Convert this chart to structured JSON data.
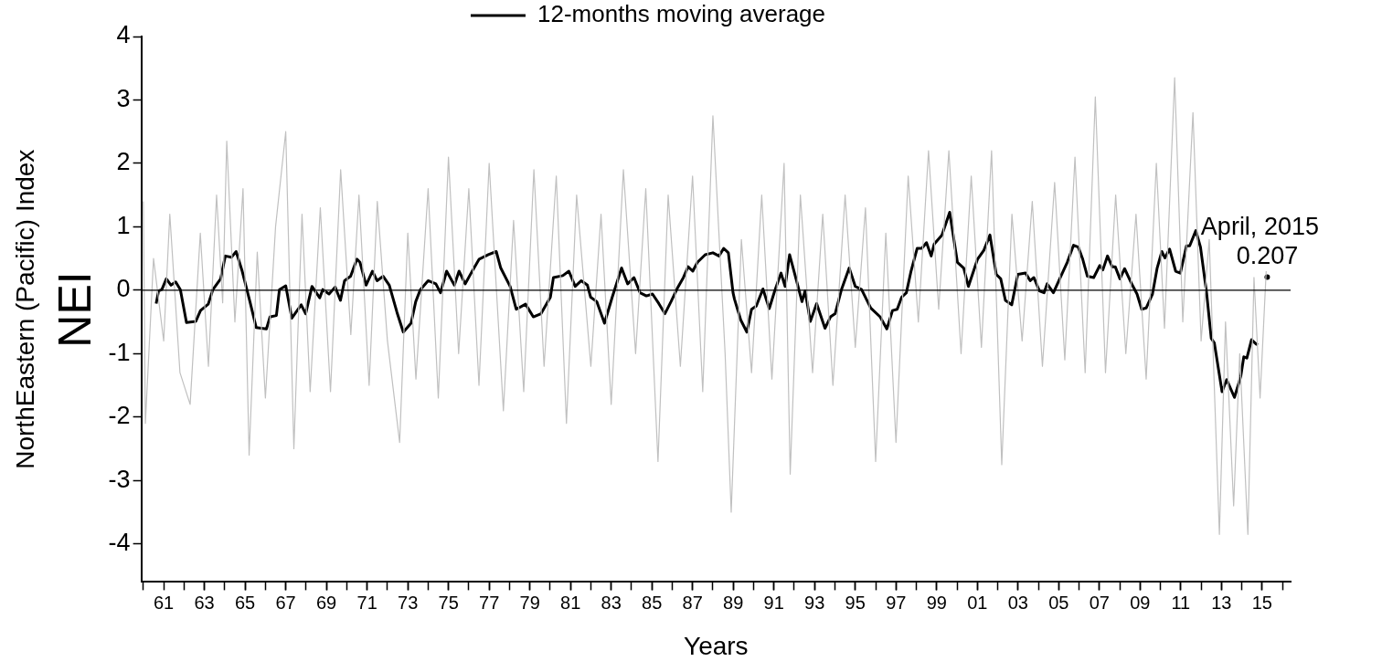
{
  "chart_data": {
    "type": "line",
    "xlabel": "Years",
    "ylabel": "NorthEastern (Pacific) Index",
    "xlim": [
      1959.9,
      2016.4
    ],
    "ylim": [
      -4.6,
      4
    ],
    "yticks": [
      -4,
      -3,
      -2,
      -1,
      0,
      1,
      2,
      3,
      4
    ],
    "xticks": [
      {
        "value": 1960,
        "label": null
      },
      {
        "value": 1962,
        "label": null
      },
      {
        "value": 1963,
        "label": null
      },
      {
        "value": 1964,
        "label": null
      },
      {
        "value": 1965,
        "label": null
      },
      {
        "value": 1966,
        "label": null
      },
      {
        "value": 1967,
        "label": null
      },
      {
        "value": 1968,
        "label": null
      },
      {
        "value": 1969,
        "label": null
      },
      {
        "value": 1970,
        "label": null
      },
      {
        "value": 1971,
        "label": null
      },
      {
        "value": 1972,
        "label": null
      },
      {
        "value": 1973,
        "label": null
      },
      {
        "value": 1974,
        "label": null
      },
      {
        "value": 1975,
        "label": null
      },
      {
        "value": 1976,
        "label": null
      },
      {
        "value": 1977,
        "label": null
      },
      {
        "value": 1978,
        "label": null
      },
      {
        "value": 1979,
        "label": null
      },
      {
        "value": 1980,
        "label": null
      },
      {
        "value": 1981,
        "label": null
      },
      {
        "value": 1982,
        "label": null
      },
      {
        "value": 1983,
        "label": null
      },
      {
        "value": 1984,
        "label": null
      },
      {
        "value": 1985,
        "label": null
      },
      {
        "value": 1986,
        "label": null
      },
      {
        "value": 1987,
        "label": null
      },
      {
        "value": 1988,
        "label": null
      },
      {
        "value": 1989,
        "label": null
      },
      {
        "value": 1990,
        "label": null
      },
      {
        "value": 1991,
        "label": null
      },
      {
        "value": 1992,
        "label": null
      },
      {
        "value": 1993,
        "label": null
      },
      {
        "value": 1994,
        "label": null
      },
      {
        "value": 1995,
        "label": null
      },
      {
        "value": 1996,
        "label": null
      },
      {
        "value": 1997,
        "label": null
      },
      {
        "value": 1998,
        "label": null
      },
      {
        "value": 1999,
        "label": null
      },
      {
        "value": 2000,
        "label": null
      },
      {
        "value": 2001,
        "label": null
      },
      {
        "value": 2002,
        "label": null
      },
      {
        "value": 2003,
        "label": null
      },
      {
        "value": 2004,
        "label": null
      },
      {
        "value": 2005,
        "label": null
      },
      {
        "value": 2006,
        "label": null
      },
      {
        "value": 2007,
        "label": null
      },
      {
        "value": 2008,
        "label": null
      },
      {
        "value": 2009,
        "label": null
      },
      {
        "value": 2010,
        "label": null
      },
      {
        "value": 2011,
        "label": null
      },
      {
        "value": 2012,
        "label": null
      },
      {
        "value": 2013,
        "label": null
      },
      {
        "value": 2014,
        "label": null
      },
      {
        "value": 2015,
        "label": null
      },
      {
        "value": 2016,
        "label": null
      },
      {
        "value": 1961,
        "label": "61"
      },
      {
        "value": 1963,
        "label": "63"
      },
      {
        "value": 1965,
        "label": "65"
      },
      {
        "value": 1967,
        "label": "67"
      },
      {
        "value": 1969,
        "label": "69"
      },
      {
        "value": 1971,
        "label": "71"
      },
      {
        "value": 1973,
        "label": "73"
      },
      {
        "value": 1975,
        "label": "75"
      },
      {
        "value": 1977,
        "label": "77"
      },
      {
        "value": 1979,
        "label": "79"
      },
      {
        "value": 1981,
        "label": "81"
      },
      {
        "value": 1983,
        "label": "83"
      },
      {
        "value": 1985,
        "label": "85"
      },
      {
        "value": 1987,
        "label": "87"
      },
      {
        "value": 1989,
        "label": "89"
      },
      {
        "value": 1991,
        "label": "91"
      },
      {
        "value": 1993,
        "label": "93"
      },
      {
        "value": 1995,
        "label": "95"
      },
      {
        "value": 1997,
        "label": "97"
      },
      {
        "value": 1999,
        "label": "99"
      },
      {
        "value": 2001,
        "label": "01"
      },
      {
        "value": 2003,
        "label": "03"
      },
      {
        "value": 2005,
        "label": "05"
      },
      {
        "value": 2007,
        "label": "07"
      },
      {
        "value": 2009,
        "label": "09"
      },
      {
        "value": 2011,
        "label": "11"
      },
      {
        "value": 2013,
        "label": "13"
      },
      {
        "value": 2015,
        "label": "15"
      }
    ],
    "grid": false,
    "legend": "top",
    "line_style": "solid",
    "ref_lines": [
      {
        "axis": "y",
        "value": 0,
        "color": "#000000"
      }
    ],
    "annotations": [
      "NEI",
      {
        "text": "April, 2015\n0.207",
        "x": 2015.25,
        "y": 0.207
      }
    ],
    "series": [
      {
        "type": "line",
        "color": "#c0c0c0",
        "x": [
          1960.0,
          1960.1,
          1960.5,
          1961.0,
          1961.3,
          1961.8,
          1962.3,
          1962.8,
          1963.2,
          1963.6,
          1963.9,
          1964.1,
          1964.5,
          1964.9,
          1965.2,
          1965.6,
          1966.0,
          1966.5,
          1967.0,
          1967.4,
          1967.8,
          1968.2,
          1968.7,
          1969.2,
          1969.7,
          1970.2,
          1970.6,
          1971.1,
          1971.5,
          1972.0,
          1972.6,
          1973.0,
          1973.4,
          1974.0,
          1974.5,
          1975.0,
          1975.5,
          1976.0,
          1976.5,
          1977.0,
          1977.7,
          1978.2,
          1978.7,
          1979.2,
          1979.7,
          1980.3,
          1980.8,
          1981.3,
          1982.0,
          1982.5,
          1983.0,
          1983.6,
          1984.2,
          1984.7,
          1985.3,
          1985.8,
          1986.4,
          1987.0,
          1987.5,
          1988.0,
          1988.6,
          1988.9,
          1989.4,
          1989.9,
          1990.4,
          1990.9,
          1991.5,
          1991.8,
          1992.3,
          1992.9,
          1993.4,
          1993.9,
          1994.5,
          1995.0,
          1995.5,
          1996.0,
          1996.5,
          1997.0,
          1997.6,
          1998.1,
          1998.6,
          1999.1,
          1999.6,
          2000.2,
          2000.7,
          2001.2,
          2001.7,
          2002.2,
          2002.7,
          2003.2,
          2003.7,
          2004.2,
          2004.8,
          2005.3,
          2005.8,
          2006.3,
          2006.8,
          2007.3,
          2007.8,
          2008.3,
          2008.8,
          2009.3,
          2009.8,
          2010.2,
          2010.7,
          2011.1,
          2011.6,
          2012.0,
          2012.4,
          2012.9,
          2013.2,
          2013.6,
          2013.9,
          2014.3,
          2014.6,
          2014.9,
          2015.2
        ],
        "values": [
          1.4,
          -2.1,
          0.5,
          -0.8,
          1.2,
          -1.3,
          -1.8,
          0.9,
          -1.2,
          1.5,
          -0.2,
          2.35,
          -0.5,
          1.6,
          -2.6,
          0.6,
          -1.7,
          1.0,
          2.5,
          -2.5,
          1.2,
          -1.6,
          1.3,
          -1.6,
          1.9,
          -0.7,
          1.5,
          -1.5,
          1.4,
          -0.8,
          -2.4,
          0.9,
          -1.4,
          1.6,
          -1.7,
          2.1,
          -1.0,
          1.6,
          -1.5,
          2.0,
          -1.9,
          1.1,
          -1.6,
          1.9,
          -1.2,
          1.8,
          -2.1,
          1.5,
          -1.2,
          1.2,
          -1.8,
          1.9,
          -1.0,
          1.6,
          -2.7,
          1.5,
          -1.2,
          1.8,
          -1.6,
          2.75,
          -1.0,
          -3.5,
          0.8,
          -1.3,
          1.5,
          -1.4,
          2.0,
          -2.9,
          1.5,
          -1.3,
          1.2,
          -1.5,
          1.5,
          -0.9,
          1.3,
          -2.7,
          0.9,
          -2.4,
          1.8,
          -0.5,
          2.2,
          -0.3,
          2.2,
          -1.0,
          1.8,
          -0.9,
          2.2,
          -2.75,
          1.2,
          -0.8,
          1.4,
          -1.2,
          1.7,
          -1.1,
          2.1,
          -1.3,
          3.05,
          -1.3,
          1.5,
          -1.0,
          1.2,
          -1.4,
          2.0,
          -0.6,
          3.35,
          -0.5,
          2.8,
          -0.8,
          0.8,
          -3.85,
          -0.5,
          -3.4,
          -1.0,
          -3.85,
          0.2,
          -1.7,
          0.3
        ]
      },
      {
        "type": "line",
        "name": "12-months moving average",
        "color": "#000000",
        "x": [
          1960.63,
          1960.75,
          1960.91,
          1961.13,
          1961.36,
          1961.59,
          1961.82,
          1962.12,
          1962.58,
          1962.81,
          1963.19,
          1963.42,
          1963.8,
          1964.03,
          1964.33,
          1964.56,
          1964.86,
          1965.24,
          1965.55,
          1966.05,
          1966.23,
          1966.54,
          1966.69,
          1967.0,
          1967.3,
          1967.76,
          1967.98,
          1968.29,
          1968.67,
          1968.82,
          1969.13,
          1969.43,
          1969.69,
          1969.89,
          1970.19,
          1970.5,
          1970.65,
          1970.95,
          1971.26,
          1971.49,
          1971.79,
          1972.09,
          1972.47,
          1972.78,
          1973.16,
          1973.39,
          1973.62,
          1974.0,
          1974.38,
          1974.61,
          1974.91,
          1975.29,
          1975.52,
          1975.82,
          1976.2,
          1976.51,
          1976.96,
          1977.35,
          1977.57,
          1978.03,
          1978.33,
          1978.79,
          1979.17,
          1979.55,
          1980.01,
          1980.16,
          1980.62,
          1980.92,
          1981.23,
          1981.53,
          1981.83,
          1981.99,
          1982.29,
          1982.67,
          1983.05,
          1983.51,
          1983.81,
          1984.12,
          1984.42,
          1984.73,
          1985.03,
          1985.34,
          1985.64,
          1985.94,
          1986.25,
          1986.55,
          1986.78,
          1987.01,
          1987.24,
          1987.62,
          1988.0,
          1988.3,
          1988.53,
          1988.76,
          1988.99,
          1989.06,
          1989.37,
          1989.67,
          1989.9,
          1990.13,
          1990.46,
          1990.77,
          1991.04,
          1991.35,
          1991.55,
          1991.77,
          1992.11,
          1992.38,
          1992.53,
          1992.79,
          1993.1,
          1993.51,
          1993.78,
          1994.01,
          1994.32,
          1994.7,
          1995.0,
          1995.31,
          1995.76,
          1996.22,
          1996.55,
          1996.83,
          1997.06,
          1997.28,
          1997.51,
          1997.74,
          1998.04,
          1998.27,
          1998.5,
          1998.73,
          1998.88,
          1999.26,
          1999.64,
          2000.02,
          2000.33,
          2000.56,
          2001.01,
          2001.32,
          2001.62,
          2001.93,
          2002.15,
          2002.38,
          2002.69,
          2002.99,
          2003.37,
          2003.6,
          2003.78,
          2004.05,
          2004.28,
          2004.43,
          2004.74,
          2005.12,
          2005.42,
          2005.73,
          2005.96,
          2006.18,
          2006.41,
          2006.72,
          2007.02,
          2007.17,
          2007.4,
          2007.63,
          2007.78,
          2008.01,
          2008.24,
          2008.62,
          2008.85,
          2009.08,
          2009.3,
          2009.61,
          2009.84,
          2010.07,
          2010.22,
          2010.45,
          2010.75,
          2010.98,
          2011.28,
          2011.44,
          2011.74,
          2011.97,
          2012.27,
          2012.5,
          2012.65,
          2013.03,
          2013.26,
          2013.64,
          2013.95,
          2014.1,
          2014.25,
          2014.48,
          2014.71,
          2014.79
        ],
        "values": [
          -0.21,
          -0.01,
          0.01,
          0.18,
          0.08,
          0.13,
          0.01,
          -0.51,
          -0.49,
          -0.32,
          -0.22,
          0.01,
          0.18,
          0.54,
          0.52,
          0.61,
          0.3,
          -0.18,
          -0.59,
          -0.61,
          -0.42,
          -0.4,
          0.01,
          0.07,
          -0.44,
          -0.23,
          -0.37,
          0.06,
          -0.12,
          0.01,
          -0.06,
          0.05,
          -0.16,
          0.15,
          0.22,
          0.49,
          0.44,
          0.08,
          0.3,
          0.15,
          0.22,
          0.08,
          -0.35,
          -0.66,
          -0.52,
          -0.18,
          0.01,
          0.15,
          0.1,
          -0.04,
          0.3,
          0.08,
          0.3,
          0.1,
          0.32,
          0.49,
          0.56,
          0.61,
          0.35,
          0.06,
          -0.3,
          -0.22,
          -0.42,
          -0.37,
          -0.11,
          0.2,
          0.23,
          0.3,
          0.06,
          0.15,
          0.08,
          -0.11,
          -0.18,
          -0.52,
          -0.11,
          0.35,
          0.1,
          0.2,
          -0.04,
          -0.09,
          -0.06,
          -0.21,
          -0.37,
          -0.18,
          0.03,
          0.2,
          0.37,
          0.3,
          0.44,
          0.56,
          0.59,
          0.54,
          0.66,
          0.59,
          -0.04,
          -0.14,
          -0.47,
          -0.66,
          -0.3,
          -0.25,
          0.02,
          -0.29,
          -0.01,
          0.27,
          0.06,
          0.56,
          0.15,
          -0.18,
          -0.01,
          -0.49,
          -0.21,
          -0.6,
          -0.42,
          -0.37,
          0.01,
          0.35,
          0.06,
          0.01,
          -0.28,
          -0.42,
          -0.61,
          -0.32,
          -0.3,
          -0.11,
          -0.04,
          0.3,
          0.66,
          0.66,
          0.75,
          0.54,
          0.73,
          0.87,
          1.23,
          0.44,
          0.35,
          0.06,
          0.49,
          0.63,
          0.87,
          0.25,
          0.18,
          -0.16,
          -0.23,
          0.25,
          0.27,
          0.15,
          0.2,
          -0.01,
          -0.04,
          0.1,
          -0.04,
          0.23,
          0.44,
          0.71,
          0.68,
          0.49,
          0.22,
          0.2,
          0.39,
          0.32,
          0.54,
          0.37,
          0.37,
          0.18,
          0.34,
          0.08,
          -0.06,
          -0.3,
          -0.28,
          -0.06,
          0.35,
          0.61,
          0.51,
          0.65,
          0.3,
          0.27,
          0.7,
          0.7,
          0.94,
          0.68,
          -0.04,
          -0.76,
          -0.83,
          -1.6,
          -1.41,
          -1.69,
          -1.36,
          -1.05,
          -1.07,
          -0.78,
          -0.85,
          -0.86
        ]
      },
      {
        "type": "scatter",
        "color": "#000000",
        "x": [
          2015.25
        ],
        "values": [
          0.207
        ]
      }
    ]
  }
}
